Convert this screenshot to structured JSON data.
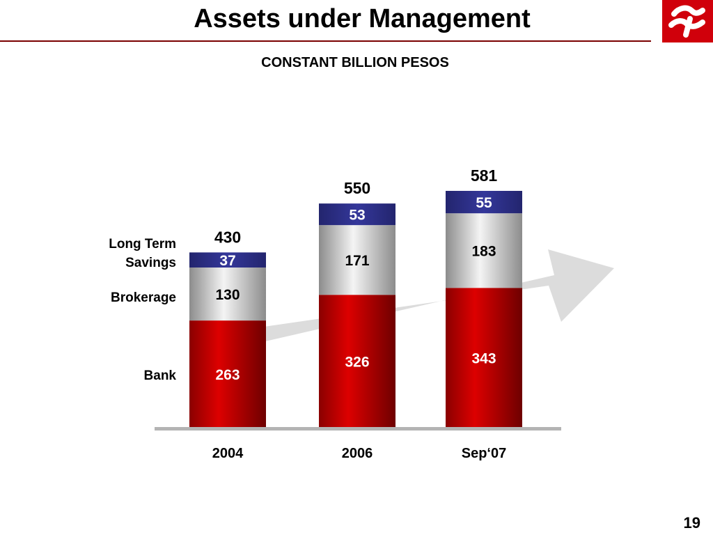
{
  "header": {
    "title": "Assets under Management",
    "subtitle": "CONSTANT BILLION PESOS",
    "logo_icon": "banorte-logo-icon"
  },
  "legend": {
    "long_term_savings": "Long Term Savings",
    "brokerage": "Brokerage",
    "bank": "Bank"
  },
  "page_number": "19",
  "colors": {
    "bank": "#cc0000",
    "brokerage": "#c8c8c8",
    "long_term_savings": "#2a2c7c",
    "trend_arrow": "#dcdcdc"
  },
  "chart_data": {
    "type": "bar",
    "stacked": true,
    "categories": [
      "2004",
      "2006",
      "Sep‘07"
    ],
    "series": [
      {
        "name": "Bank",
        "values": [
          263,
          326,
          343
        ]
      },
      {
        "name": "Brokerage",
        "values": [
          130,
          171,
          183
        ]
      },
      {
        "name": "Long Term Savings",
        "values": [
          37,
          53,
          55
        ]
      }
    ],
    "totals": [
      430,
      550,
      581
    ],
    "title": "Assets under Management",
    "subtitle": "CONSTANT BILLION PESOS",
    "xlabel": "",
    "ylabel": "",
    "ylim": [
      0,
      581
    ],
    "grid": false,
    "legend_position": "left"
  }
}
